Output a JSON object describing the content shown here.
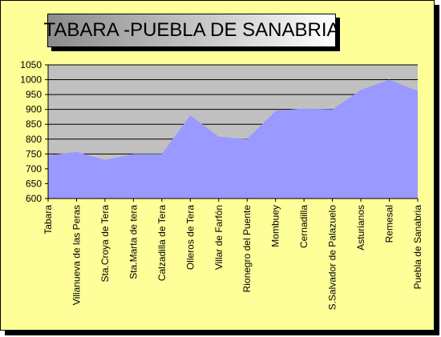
{
  "chart_data": {
    "type": "area",
    "title": "TABARA -PUEBLA DE SANABRIA",
    "xlabel": "",
    "ylabel": "",
    "ylim": [
      600,
      1050
    ],
    "ystep": 50,
    "grid": true,
    "categories": [
      "Tabara",
      "Villanueva de las Peras",
      "Sta.Croya de Tera",
      "Sta.Marta de tera",
      "Calzadilla de Tera",
      "Olleros de Tera",
      "Villar de Farfón",
      "Rionegro del Puente",
      "Mombuey",
      "Cernadilla",
      "S.Salvador de Palazuelo",
      "Asturianos",
      "Remesal",
      "Puebla de Sanabria"
    ],
    "series": [
      {
        "values": [
          745,
          757,
          730,
          750,
          750,
          880,
          808,
          800,
          895,
          903,
          900,
          965,
          1000,
          962
        ]
      }
    ],
    "colors": {
      "area": "#9999ff",
      "plot_background": "#c0c0c0",
      "chart_background": "#ffff99",
      "grid": "#000000"
    },
    "y_ticks": [
      "600",
      "650",
      "700",
      "750",
      "800",
      "850",
      "900",
      "950",
      "1000",
      "1050"
    ]
  }
}
